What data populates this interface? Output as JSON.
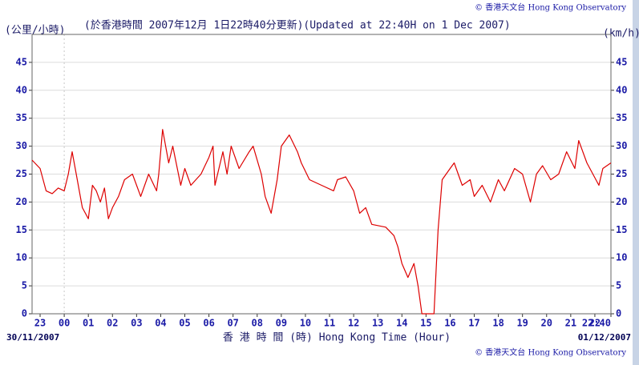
{
  "chart_data": {
    "type": "line",
    "title": "(於香港時間 2007年12月 1日22時40分更新)(Updated at 22:40H on 1 Dec 2007)",
    "y_label_left": "(公里/小時)",
    "y_label_right": "(km/h)",
    "x_label": "香 港 時 間 (時)  Hong Kong Time (Hour)",
    "start_date": "30/11/2007",
    "end_date": "01/12/2007",
    "credit_top": "© 香港天文台 Hong Kong Observatory",
    "credit_bottom": "© 香港天文台 Hong Kong Observatory",
    "color": "#dd0000",
    "grid": true,
    "xlim": [
      22.667,
      46.667
    ],
    "ylim": [
      0,
      50
    ],
    "yticks": [
      0,
      5,
      10,
      15,
      20,
      25,
      30,
      35,
      40,
      45
    ],
    "xticks": [
      23,
      {
        "value": 24,
        "label": "00"
      },
      {
        "value": 25,
        "label": "01"
      },
      {
        "value": 26,
        "label": "02"
      },
      {
        "value": 27,
        "label": "03"
      },
      {
        "value": 28,
        "label": "04"
      },
      {
        "value": 29,
        "label": "05"
      },
      {
        "value": 30,
        "label": "06"
      },
      {
        "value": 31,
        "label": "07"
      },
      {
        "value": 32,
        "label": "08"
      },
      {
        "value": 33,
        "label": "09"
      },
      {
        "value": 34,
        "label": "10"
      },
      {
        "value": 35,
        "label": "11"
      },
      {
        "value": 36,
        "label": "12"
      },
      {
        "value": 37,
        "label": "13"
      },
      {
        "value": 38,
        "label": "14"
      },
      {
        "value": 39,
        "label": "15"
      },
      {
        "value": 40,
        "label": "16"
      },
      {
        "value": 41,
        "label": "17"
      },
      {
        "value": 42,
        "label": "18"
      },
      {
        "value": 43,
        "label": "19"
      },
      {
        "value": 44,
        "label": "20"
      },
      {
        "value": 45,
        "label": "21"
      },
      {
        "value": 46,
        "label": "22"
      },
      {
        "value": 46.667,
        "label": "22:40"
      }
    ],
    "x": [
      22.667,
      23,
      23.25,
      23.5,
      23.75,
      24,
      24.17,
      24.33,
      24.5,
      24.75,
      25,
      25.17,
      25.33,
      25.5,
      25.67,
      25.83,
      26,
      26.25,
      26.5,
      26.83,
      27.17,
      27.5,
      27.83,
      27.92,
      28.08,
      28.33,
      28.5,
      28.83,
      29,
      29.25,
      29.67,
      30,
      30.17,
      30.25,
      30.58,
      30.75,
      30.92,
      31.25,
      31.67,
      31.83,
      32.17,
      32.33,
      32.58,
      32.83,
      33,
      33.33,
      33.67,
      33.83,
      34.17,
      34.67,
      35.17,
      35.33,
      35.67,
      36,
      36.25,
      36.5,
      36.75,
      37.33,
      37.67,
      37.83,
      38,
      38.25,
      38.5,
      38.67,
      38.83,
      39.33,
      39.5,
      39.67,
      40,
      40.17,
      40.5,
      40.83,
      41,
      41.33,
      41.67,
      42,
      42.25,
      42.67,
      43,
      43.33,
      43.58,
      43.83,
      44.17,
      44.5,
      44.83,
      45.17,
      45.33,
      45.67,
      45.92,
      46.17,
      46.33,
      46.667
    ],
    "values": [
      27.5,
      26,
      22,
      21.5,
      22.5,
      22,
      25,
      29,
      25,
      19,
      17,
      23,
      22,
      20,
      22.5,
      17,
      19,
      21,
      24,
      25,
      21,
      25,
      22,
      25,
      33,
      27,
      30,
      23,
      26,
      23,
      25,
      28,
      30,
      23,
      29,
      25,
      30,
      26,
      29,
      30,
      25,
      21,
      18,
      24,
      30,
      32,
      29,
      27,
      24,
      23,
      22,
      24,
      24.5,
      22,
      18,
      19,
      16,
      15.5,
      14,
      12,
      9,
      6.5,
      9,
      5,
      0,
      0,
      15,
      24,
      26,
      27,
      23,
      24,
      21,
      23,
      20,
      24,
      22,
      26,
      25,
      20,
      25,
      26.5,
      24,
      25,
      29,
      26,
      31,
      27,
      25,
      23,
      26,
      27
    ]
  }
}
